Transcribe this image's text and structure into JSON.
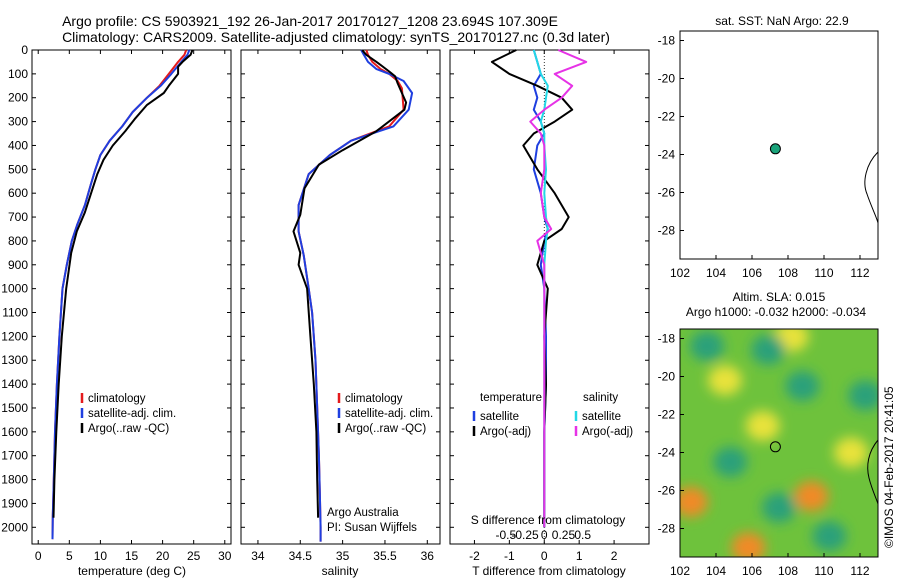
{
  "header": {
    "title_line1": "Argo profile: CS 5903921_192 26-Jan-2017 20170127_1208 23.694S 107.309E",
    "title_line2": "Climatology: CARS2009. Satellite-adjusted climatology: synTS_20170127.nc (0.3d later)"
  },
  "colors": {
    "climatology": "#e41a1c",
    "satellite": "#1f3fe0",
    "argo": "#000000",
    "satellite_salinity": "#22d8e6",
    "argo_salinity_adj": "#e632e6",
    "float_marker": "#1aa37a"
  },
  "chart_data": [
    {
      "id": "temperature",
      "type": "line",
      "xlabel": "temperature (deg C)",
      "ylabel": "",
      "xlim": [
        -1,
        31
      ],
      "ylim": [
        2070,
        0
      ],
      "xticks": [
        0,
        5,
        10,
        15,
        20,
        25,
        30
      ],
      "yticks": [
        0,
        100,
        200,
        300,
        400,
        500,
        600,
        700,
        800,
        900,
        1000,
        1100,
        1200,
        1300,
        1400,
        1500,
        1600,
        1700,
        1800,
        1900,
        2000
      ],
      "legend": [
        "climatology",
        "satellite-adj. clim.",
        "Argo(..raw -QC)"
      ],
      "series": [
        {
          "name": "climatology",
          "color_key": "climatology",
          "x": [
            23.8,
            23.5,
            22.5,
            21.0,
            19.5,
            17.5,
            15.2,
            13.5,
            11.5,
            10.0,
            9.2,
            8.5,
            7.5,
            6.3,
            5.4,
            4.6,
            3.9,
            3.4,
            3.0,
            2.7,
            2.5,
            2.35,
            2.3
          ],
          "y": [
            0,
            20,
            50,
            100,
            150,
            200,
            260,
            320,
            380,
            440,
            500,
            560,
            650,
            730,
            800,
            900,
            1000,
            1200,
            1400,
            1600,
            1800,
            1950,
            2050
          ]
        },
        {
          "name": "satellite-adj. clim.",
          "color_key": "satellite",
          "x": [
            24.3,
            24.0,
            23.0,
            21.4,
            19.7,
            17.5,
            15.2,
            13.5,
            11.5,
            10.0,
            9.2,
            8.5,
            7.5,
            6.3,
            5.4,
            4.6,
            3.9,
            3.4,
            3.0,
            2.7,
            2.5,
            2.35,
            2.3
          ],
          "y": [
            0,
            20,
            50,
            100,
            150,
            200,
            260,
            320,
            380,
            440,
            500,
            560,
            650,
            730,
            800,
            900,
            1000,
            1200,
            1400,
            1600,
            1800,
            1950,
            2050
          ]
        },
        {
          "name": "Argo(..raw -QC)",
          "color_key": "argo",
          "x": [
            24.8,
            24.5,
            23.2,
            22.5,
            22.5,
            21.0,
            20.2,
            17.5,
            15.5,
            14.0,
            12.0,
            10.5,
            9.5,
            8.5,
            7.5,
            6.2,
            5.3,
            4.5,
            3.8,
            3.3,
            2.9,
            2.6,
            2.45
          ],
          "y": [
            0,
            20,
            50,
            70,
            100,
            150,
            180,
            230,
            290,
            340,
            400,
            460,
            520,
            600,
            680,
            760,
            850,
            1000,
            1200,
            1400,
            1600,
            1800,
            1960
          ]
        }
      ]
    },
    {
      "id": "salinity",
      "type": "line",
      "xlabel": "salinity",
      "ylabel": "",
      "xlim": [
        33.8,
        36.15
      ],
      "ylim": [
        2070,
        0
      ],
      "xticks": [
        34,
        34.5,
        35,
        35.5,
        36
      ],
      "legend": [
        "climatology",
        "satellite-adj. clim.",
        "Argo(..raw -QC)"
      ],
      "annotation": [
        "Argo Australia",
        "PI: Susan Wijffels"
      ],
      "series": [
        {
          "name": "climatology",
          "color_key": "climatology",
          "x": [
            35.28,
            35.3,
            35.35,
            35.45,
            35.55,
            35.65,
            35.7,
            35.72,
            35.55,
            35.1,
            34.85,
            34.6,
            34.48,
            34.48,
            34.54,
            34.6,
            34.64,
            34.68,
            34.7,
            34.72,
            34.73,
            34.74,
            34.74
          ],
          "y": [
            0,
            20,
            50,
            80,
            100,
            130,
            160,
            250,
            320,
            380,
            440,
            520,
            650,
            760,
            860,
            1000,
            1100,
            1300,
            1500,
            1700,
            1850,
            2000,
            2060
          ]
        },
        {
          "name": "satellite-adj. clim.",
          "color_key": "satellite",
          "x": [
            35.22,
            35.25,
            35.3,
            35.4,
            35.55,
            35.72,
            35.82,
            35.78,
            35.6,
            35.1,
            34.85,
            34.6,
            34.48,
            34.48,
            34.54,
            34.6,
            34.64,
            34.68,
            34.7,
            34.72,
            34.73,
            34.74,
            34.74
          ],
          "y": [
            0,
            20,
            50,
            80,
            100,
            130,
            180,
            250,
            320,
            380,
            440,
            520,
            650,
            760,
            860,
            1000,
            1100,
            1300,
            1500,
            1700,
            1850,
            2000,
            2060
          ]
        },
        {
          "name": "Argo(..raw -QC)",
          "color_key": "argo",
          "x": [
            35.23,
            35.28,
            35.4,
            35.55,
            35.62,
            35.65,
            35.7,
            35.75,
            35.73,
            35.4,
            35.0,
            34.72,
            34.55,
            34.5,
            34.42,
            34.5,
            34.48,
            34.58,
            34.62,
            34.66,
            34.69,
            34.7,
            34.71
          ],
          "y": [
            0,
            20,
            50,
            90,
            110,
            140,
            180,
            220,
            250,
            340,
            420,
            480,
            580,
            690,
            760,
            850,
            900,
            1000,
            1200,
            1400,
            1600,
            1800,
            1960
          ]
        }
      ]
    },
    {
      "id": "difference",
      "type": "line",
      "xlabel": "T difference from climatology",
      "xlabel_top": "S difference from climatology",
      "xlim": [
        -2.7,
        3.0
      ],
      "ylim": [
        2070,
        0
      ],
      "xticks": [
        -2,
        -1,
        0,
        1,
        2
      ],
      "xticks_top": [
        -0.5,
        -0.25,
        0,
        0.25,
        0.5
      ],
      "legend_temperature": {
        "title": "temperature",
        "items": [
          "satellite",
          "Argo(-adj)"
        ]
      },
      "legend_salinity": {
        "title": "salinity",
        "items": [
          "satellite",
          "Argo(-adj)"
        ]
      },
      "series": [
        {
          "name": "temperature satellite",
          "color_key": "satellite",
          "x": [
            -0.3,
            -0.2,
            -0.1,
            -0.3,
            -0.2,
            -0.3,
            -0.1,
            0.0,
            -0.2,
            -0.3,
            -0.1,
            0.0,
            0.1,
            0.0,
            -0.1,
            0.0,
            0.05,
            0.05,
            0.0,
            0.0,
            0.0
          ],
          "y": [
            0,
            50,
            100,
            150,
            200,
            250,
            300,
            350,
            400,
            500,
            600,
            700,
            750,
            800,
            900,
            1000,
            1200,
            1400,
            1600,
            1800,
            2000
          ]
        },
        {
          "name": "temperature Argo(-adj)",
          "color_key": "argo",
          "x": [
            -0.8,
            -1.5,
            -1.0,
            -0.2,
            0.5,
            0.8,
            0.3,
            -0.3,
            -0.6,
            -0.2,
            0.3,
            0.7,
            0.5,
            0.0,
            -0.2,
            0.1,
            0.0,
            0.05,
            0.0,
            0.0,
            0.0
          ],
          "y": [
            0,
            50,
            100,
            150,
            200,
            250,
            300,
            350,
            400,
            500,
            600,
            700,
            750,
            800,
            900,
            1000,
            1200,
            1400,
            1600,
            1800,
            2000
          ]
        },
        {
          "name": "salinity satellite",
          "color_key": "satellite_salinity",
          "x": [
            -0.3,
            -0.2,
            -0.1,
            0.1,
            0.05,
            0.0,
            -0.1,
            0.0,
            0.0,
            0.05,
            0.0,
            0.05,
            0.1,
            0.05,
            0.0,
            0.0,
            0.0,
            0.0,
            0.0,
            0.0,
            0.0
          ],
          "y": [
            0,
            50,
            100,
            150,
            200,
            250,
            300,
            350,
            400,
            500,
            600,
            700,
            750,
            800,
            900,
            1000,
            1200,
            1400,
            1600,
            1800,
            2000
          ]
        },
        {
          "name": "salinity Argo(-adj)",
          "color_key": "argo_salinity_adj",
          "x": [
            0.4,
            1.2,
            0.3,
            0.8,
            0.5,
            0.0,
            -0.4,
            -0.1,
            0.0,
            0.0,
            -0.1,
            0.0,
            0.2,
            -0.2,
            0.0,
            0.0,
            0.0,
            0.0,
            0.0,
            0.0,
            0.0
          ],
          "y": [
            0,
            50,
            100,
            150,
            200,
            250,
            300,
            350,
            400,
            500,
            600,
            700,
            750,
            800,
            900,
            1000,
            1200,
            1400,
            1600,
            1800,
            2000
          ]
        }
      ]
    },
    {
      "id": "sst_map",
      "type": "scatter",
      "title": "sat. SST: NaN Argo: 22.9",
      "xlim": [
        102,
        113
      ],
      "ylim": [
        -29.5,
        -17.5
      ],
      "xticks": [
        102,
        104,
        106,
        108,
        110,
        112
      ],
      "yticks": [
        -18,
        -20,
        -22,
        -24,
        -26,
        -28
      ],
      "point": {
        "lon": 107.3,
        "lat": -23.7
      }
    },
    {
      "id": "sla_map",
      "type": "heatmap",
      "title_line1": "Altim. SLA: 0.015",
      "title_line2": "Argo h1000: -0.032 h2000: -0.034",
      "xlim": [
        102,
        113
      ],
      "ylim": [
        -29.5,
        -17.5
      ],
      "xticks": [
        102,
        104,
        106,
        108,
        110,
        112
      ],
      "yticks": [
        -18,
        -20,
        -22,
        -24,
        -26,
        -28
      ],
      "point": {
        "lon": 107.3,
        "lat": -23.7
      },
      "blobs": [
        {
          "lon": 102.6,
          "lat": -26.6,
          "level": "orange"
        },
        {
          "lon": 109.3,
          "lat": -26.3,
          "level": "orange"
        },
        {
          "lon": 105.8,
          "lat": -29.0,
          "level": "orange"
        },
        {
          "lon": 106.6,
          "lat": -22.6,
          "level": "yellow"
        },
        {
          "lon": 108.2,
          "lat": -17.9,
          "level": "yellow"
        },
        {
          "lon": 104.5,
          "lat": -20.2,
          "level": "yellow"
        },
        {
          "lon": 111.5,
          "lat": -24.0,
          "level": "yellow"
        },
        {
          "lon": 103.5,
          "lat": -18.4,
          "level": "teal"
        },
        {
          "lon": 108.8,
          "lat": -20.5,
          "level": "teal"
        },
        {
          "lon": 106.9,
          "lat": -18.6,
          "level": "teal"
        },
        {
          "lon": 104.8,
          "lat": -24.5,
          "level": "teal"
        },
        {
          "lon": 110.3,
          "lat": -28.4,
          "level": "teal"
        },
        {
          "lon": 112.3,
          "lat": -21.0,
          "level": "teal"
        },
        {
          "lon": 107.5,
          "lat": -26.9,
          "level": "teal"
        }
      ]
    }
  ],
  "credit": "©IMOS 04-Feb-2017 20:41:05"
}
